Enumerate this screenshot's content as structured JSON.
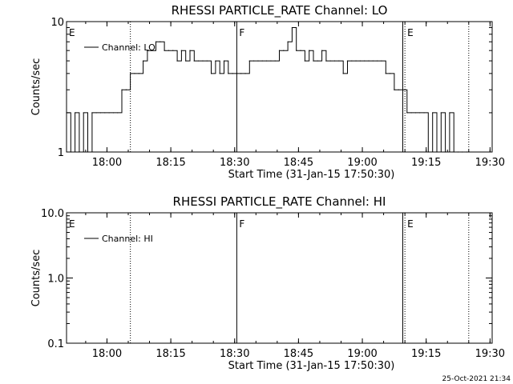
{
  "footer": {
    "timestamp": "25-Oct-2021 21:34"
  },
  "chart_data": [
    {
      "type": "line",
      "title": "RHESSI PARTICLE_RATE Channel: LO",
      "xlabel": "Start Time (31-Jan-15 17:50:30)",
      "ylabel": "Counts/sec",
      "yscale": "log",
      "ylim": [
        1,
        10
      ],
      "xlim": [
        "17:50:30",
        "19:30:30"
      ],
      "grid": false,
      "legend_position": "top-left",
      "xticks": [
        "18:00",
        "18:15",
        "18:30",
        "18:45",
        "19:00",
        "19:15",
        "19:30"
      ],
      "yticks": [
        "1",
        "10"
      ],
      "markers": [
        {
          "time": "17:50:30",
          "label": "E",
          "style": "none"
        },
        {
          "time": "18:05:30",
          "label": "",
          "style": "dotted"
        },
        {
          "time": "18:30:30",
          "label": "F",
          "style": "solid"
        },
        {
          "time": "19:09:30",
          "label": "",
          "style": "solid"
        },
        {
          "time": "19:10:00",
          "label": "E",
          "style": "dotted"
        },
        {
          "time": "19:25:00",
          "label": "",
          "style": "dotted"
        }
      ],
      "series": [
        {
          "name": "Channel: LO",
          "color": "#000000",
          "x": [
            "17:50:30",
            "17:51:30",
            "17:52:30",
            "17:53:30",
            "17:54:30",
            "17:55:30",
            "17:56:30",
            "17:57:30",
            "17:58:30",
            "17:59:30",
            "18:00:30",
            "18:01:30",
            "18:02:30",
            "18:03:30",
            "18:04:30",
            "18:05:30",
            "18:06:30",
            "18:07:30",
            "18:08:30",
            "18:09:30",
            "18:10:30",
            "18:11:30",
            "18:12:30",
            "18:13:30",
            "18:14:30",
            "18:15:30",
            "18:16:30",
            "18:17:30",
            "18:18:30",
            "18:19:30",
            "18:20:30",
            "18:21:30",
            "18:22:30",
            "18:23:30",
            "18:24:30",
            "18:25:30",
            "18:26:30",
            "18:27:30",
            "18:28:30",
            "18:29:30",
            "18:30:30",
            "18:31:30",
            "18:32:30",
            "18:33:30",
            "18:34:30",
            "18:35:30",
            "18:36:30",
            "18:37:30",
            "18:38:30",
            "18:39:30",
            "18:40:30",
            "18:41:30",
            "18:42:30",
            "18:43:30",
            "18:44:30",
            "18:45:30",
            "18:46:30",
            "18:47:30",
            "18:48:30",
            "18:49:30",
            "18:50:30",
            "18:51:30",
            "18:52:30",
            "18:53:30",
            "18:54:30",
            "18:55:30",
            "18:56:30",
            "18:57:30",
            "18:58:30",
            "18:59:30",
            "19:00:30",
            "19:01:30",
            "19:02:30",
            "19:03:30",
            "19:04:30",
            "19:05:30",
            "19:06:30",
            "19:07:30",
            "19:08:30",
            "19:09:30",
            "19:10:30",
            "19:11:30",
            "19:12:30",
            "19:13:30",
            "19:14:30",
            "19:15:30",
            "19:16:30",
            "19:17:30",
            "19:18:30",
            "19:19:30",
            "19:20:30",
            "19:21:30",
            "19:22:30",
            "19:23:30",
            "19:24:30"
          ],
          "values": [
            2,
            1,
            2,
            1,
            2,
            1,
            2,
            2,
            2,
            2,
            2,
            2,
            2,
            3,
            3,
            4,
            4,
            4,
            5,
            6,
            6,
            7,
            7,
            6,
            6,
            6,
            5,
            6,
            5,
            6,
            5,
            5,
            5,
            5,
            4,
            5,
            4,
            5,
            4,
            4,
            4,
            4,
            4,
            5,
            5,
            5,
            5,
            5,
            5,
            5,
            6,
            6,
            7,
            9,
            6,
            6,
            5,
            6,
            5,
            5,
            6,
            5,
            5,
            5,
            5,
            4,
            5,
            5,
            5,
            5,
            5,
            5,
            5,
            5,
            5,
            4,
            4,
            3,
            3,
            3,
            2,
            2,
            2,
            2,
            2,
            1,
            2,
            1,
            2,
            1,
            2,
            1,
            1,
            1,
            1
          ]
        }
      ]
    },
    {
      "type": "line",
      "title": "RHESSI PARTICLE_RATE Channel: HI",
      "xlabel": "Start Time (31-Jan-15 17:50:30)",
      "ylabel": "Counts/sec",
      "yscale": "log",
      "ylim": [
        0.1,
        10
      ],
      "xlim": [
        "17:50:30",
        "19:30:30"
      ],
      "grid": false,
      "legend_position": "top-left",
      "xticks": [
        "18:00",
        "18:15",
        "18:30",
        "18:45",
        "19:00",
        "19:15",
        "19:30"
      ],
      "yticks": [
        "0.1",
        "1.0",
        "10.0"
      ],
      "markers": [
        {
          "time": "17:50:30",
          "label": "E",
          "style": "none"
        },
        {
          "time": "18:05:30",
          "label": "",
          "style": "dotted"
        },
        {
          "time": "18:30:30",
          "label": "F",
          "style": "solid"
        },
        {
          "time": "19:09:30",
          "label": "",
          "style": "solid"
        },
        {
          "time": "19:10:00",
          "label": "E",
          "style": "dotted"
        },
        {
          "time": "19:25:00",
          "label": "",
          "style": "dotted"
        }
      ],
      "series": [
        {
          "name": "Channel: HI",
          "color": "#000000",
          "x": [],
          "values": []
        }
      ]
    }
  ]
}
